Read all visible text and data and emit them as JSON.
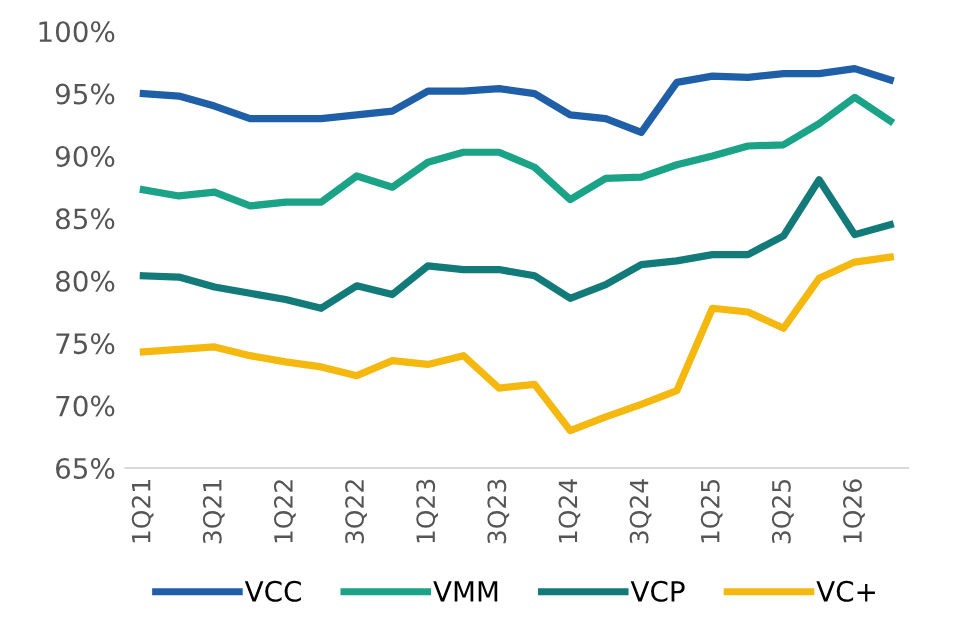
{
  "chart_data": {
    "type": "line",
    "categories": [
      "1Q21",
      null,
      "3Q21",
      null,
      "1Q22",
      null,
      "3Q22",
      null,
      "1Q23",
      null,
      "3Q23",
      null,
      "1Q24",
      null,
      "3Q24",
      null,
      "1Q25",
      null,
      "3Q25",
      null,
      "1Q26",
      null
    ],
    "series": [
      {
        "name": "VCC",
        "color": "#1f5fa8",
        "values": [
          95.0,
          94.8,
          94.0,
          93.0,
          93.0,
          93.0,
          93.3,
          93.6,
          95.2,
          95.2,
          95.4,
          95.0,
          93.3,
          93.0,
          91.9,
          95.9,
          96.4,
          96.3,
          96.6,
          96.6,
          97.0,
          96.1
        ]
      },
      {
        "name": "VMM",
        "color": "#1aa386",
        "values": [
          87.3,
          86.8,
          87.1,
          86.0,
          86.3,
          86.3,
          88.4,
          87.5,
          89.5,
          90.3,
          90.3,
          89.1,
          86.5,
          88.2,
          88.3,
          89.3,
          90.0,
          90.8,
          90.9,
          92.6,
          94.7,
          92.8
        ]
      },
      {
        "name": "VCP",
        "color": "#127a78",
        "values": [
          80.4,
          80.3,
          79.5,
          79.0,
          78.5,
          77.8,
          79.6,
          78.9,
          81.2,
          80.9,
          80.9,
          80.4,
          78.6,
          79.7,
          81.3,
          81.6,
          82.1,
          82.1,
          83.6,
          88.1,
          83.7,
          84.5
        ]
      },
      {
        "name": "VC+",
        "color": "#f5b80f",
        "values": [
          74.3,
          74.5,
          74.7,
          74.0,
          73.5,
          73.1,
          72.4,
          73.6,
          73.3,
          74.0,
          71.4,
          71.7,
          68.0,
          69.1,
          70.1,
          71.2,
          77.8,
          77.5,
          76.2,
          80.2,
          81.5,
          81.9
        ]
      }
    ],
    "ylim": [
      65,
      100
    ],
    "yticks": [
      {
        "value": 65,
        "label": "65%"
      },
      {
        "value": 70,
        "label": "70%"
      },
      {
        "value": 75,
        "label": "75%"
      },
      {
        "value": 80,
        "label": "80%"
      },
      {
        "value": 85,
        "label": "85%"
      },
      {
        "value": 90,
        "label": "90%"
      },
      {
        "value": 95,
        "label": "95%"
      },
      {
        "value": 100,
        "label": "100%"
      }
    ],
    "legend": "bottom",
    "grid": false,
    "line_style": "solid",
    "marker": "none"
  }
}
